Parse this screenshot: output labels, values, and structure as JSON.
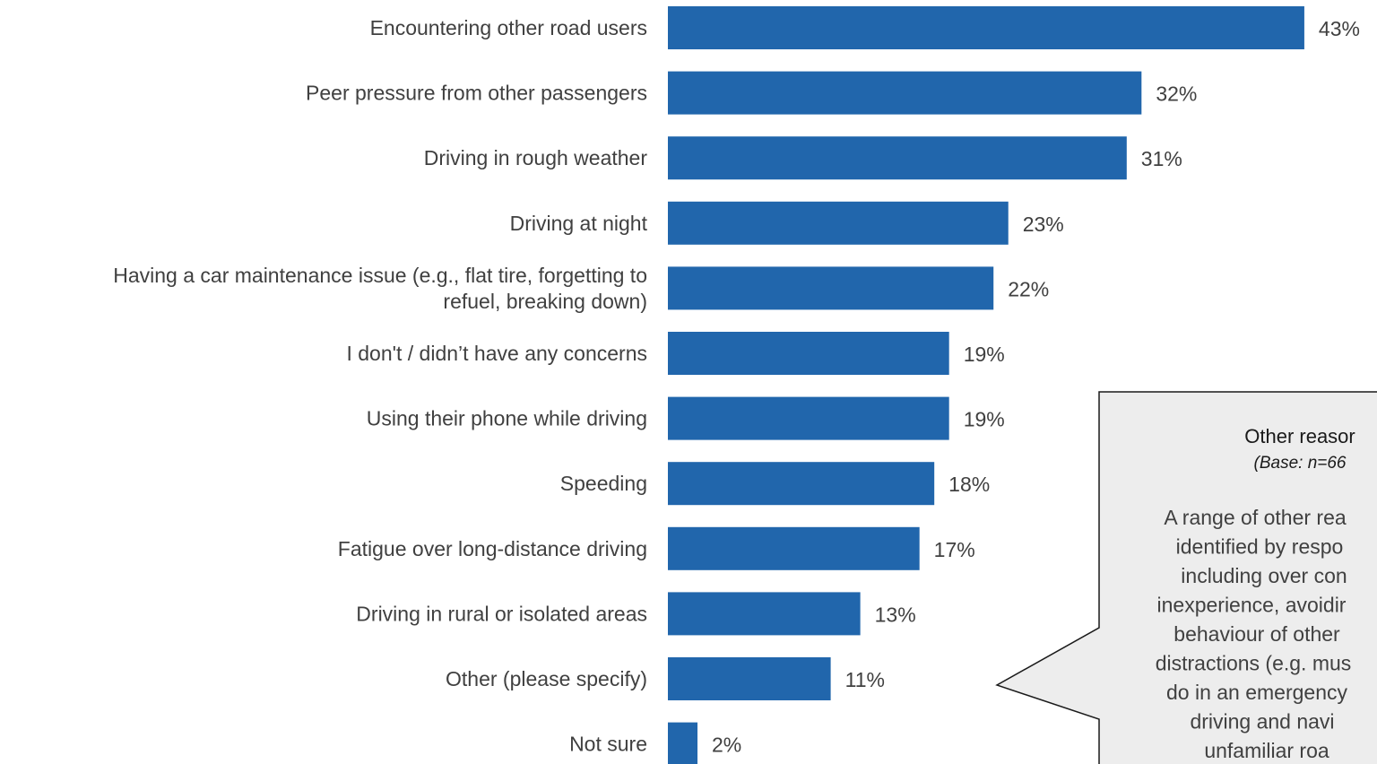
{
  "chart_data": {
    "type": "bar",
    "orientation": "horizontal",
    "categories": [
      [
        "Encountering other road users"
      ],
      [
        "Peer pressure from other passengers"
      ],
      [
        "Driving in rough weather"
      ],
      [
        "Driving at night"
      ],
      [
        "Having a car maintenance issue (e.g., flat tire, forgetting to",
        "refuel, breaking down)"
      ],
      [
        "I don't / didn’t have any concerns"
      ],
      [
        "Using their phone while driving"
      ],
      [
        "Speeding"
      ],
      [
        "Fatigue over long-distance driving"
      ],
      [
        "Driving in rural or isolated areas"
      ],
      [
        "Other (please specify)"
      ],
      [
        "Not sure"
      ]
    ],
    "values": [
      43,
      32,
      31,
      23,
      22,
      19,
      19,
      18,
      17,
      13,
      11,
      2
    ],
    "value_labels": [
      "43%",
      "32%",
      "31%",
      "23%",
      "22%",
      "19%",
      "19%",
      "18%",
      "17%",
      "13%",
      "11%",
      "2%"
    ],
    "unit": "%",
    "xlim": [
      0,
      43
    ],
    "bar_color": "#2166ac",
    "grid": false,
    "legend": "none"
  },
  "callout": {
    "title": "Other reasor",
    "base": "(Base: n=66",
    "body_lines": [
      "A range of other rea",
      "identified by respo",
      "including over con",
      "inexperience, avoidir",
      "behaviour of other",
      "distractions (e.g. mus",
      "do in an emergency",
      "driving and navi",
      "unfamiliar roa"
    ],
    "fill_color": "#ededed",
    "border_color": "#1a1a1a",
    "title_color": "#c00000"
  }
}
